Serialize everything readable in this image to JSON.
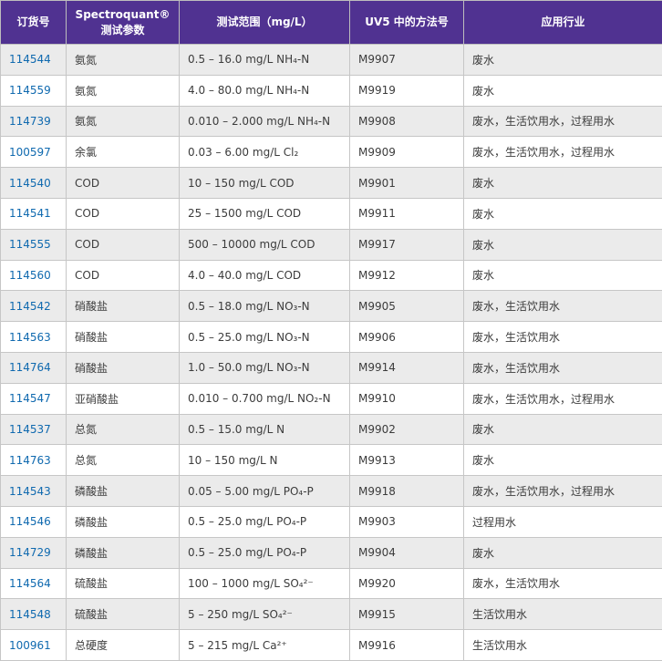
{
  "table": {
    "header_bg": "#503291",
    "header_text_color": "#ffffff",
    "order_link_color": "#0f69af",
    "zebra_row_color": "#ebebeb",
    "columns": [
      {
        "id": "order",
        "label": "订货号"
      },
      {
        "id": "param",
        "label": "Spectroquant®",
        "label2": "测试参数"
      },
      {
        "id": "range",
        "label": "测试范围（mg/L）"
      },
      {
        "id": "method",
        "label": "UV5 中的方法号"
      },
      {
        "id": "industry",
        "label": "应用行业"
      }
    ],
    "rows": [
      {
        "order": "114544",
        "param": "氨氮",
        "range": "0.5 – 16.0 mg/L NH₄-N",
        "method": "M9907",
        "industry": "废水"
      },
      {
        "order": "114559",
        "param": "氨氮",
        "range": "4.0 – 80.0 mg/L NH₄-N",
        "method": "M9919",
        "industry": "废水"
      },
      {
        "order": "114739",
        "param": "氨氮",
        "range": "0.010 – 2.000 mg/L NH₄-N",
        "method": "M9908",
        "industry": "废水，生活饮用水，过程用水"
      },
      {
        "order": "100597",
        "param": "余氯",
        "range": "0.03 – 6.00 mg/L Cl₂",
        "method": "M9909",
        "industry": "废水，生活饮用水，过程用水"
      },
      {
        "order": "114540",
        "param": "COD",
        "range": "10 – 150 mg/L COD",
        "method": "M9901",
        "industry": "废水"
      },
      {
        "order": "114541",
        "param": "COD",
        "range": "25 – 1500 mg/L COD",
        "method": "M9911",
        "industry": "废水"
      },
      {
        "order": "114555",
        "param": "COD",
        "range": "500 – 10000 mg/L COD",
        "method": "M9917",
        "industry": "废水"
      },
      {
        "order": "114560",
        "param": "COD",
        "range": "4.0 – 40.0 mg/L COD",
        "method": "M9912",
        "industry": "废水"
      },
      {
        "order": "114542",
        "param": "硝酸盐",
        "range": "0.5 – 18.0 mg/L NO₃-N",
        "method": "M9905",
        "industry": "废水，生活饮用水"
      },
      {
        "order": "114563",
        "param": "硝酸盐",
        "range": "0.5 – 25.0 mg/L NO₃-N",
        "method": "M9906",
        "industry": "废水，生活饮用水"
      },
      {
        "order": "114764",
        "param": "硝酸盐",
        "range": "1.0 – 50.0 mg/L NO₃-N",
        "method": "M9914",
        "industry": "废水，生活饮用水"
      },
      {
        "order": "114547",
        "param": "亚硝酸盐",
        "range": "0.010 – 0.700 mg/L NO₂-N",
        "method": "M9910",
        "industry": "废水，生活饮用水，过程用水"
      },
      {
        "order": "114537",
        "param": "总氮",
        "range": "0.5 – 15.0 mg/L N",
        "method": "M9902",
        "industry": "废水"
      },
      {
        "order": "114763",
        "param": "总氮",
        "range": "10 – 150 mg/L N",
        "method": "M9913",
        "industry": "废水"
      },
      {
        "order": "114543",
        "param": "磷酸盐",
        "range": "0.05 – 5.00 mg/L PO₄-P",
        "method": "M9918",
        "industry": "废水，生活饮用水，过程用水"
      },
      {
        "order": "114546",
        "param": "磷酸盐",
        "range": "0.5 – 25.0  mg/L PO₄-P",
        "method": "M9903",
        "industry": "过程用水"
      },
      {
        "order": "114729",
        "param": "磷酸盐",
        "range": "0.5 – 25.0 mg/L PO₄-P",
        "method": "M9904",
        "industry": "废水"
      },
      {
        "order": "114564",
        "param": "硫酸盐",
        "range": "100 – 1000 mg/L SO₄²⁻",
        "method": "M9920",
        "industry": "废水，生活饮用水"
      },
      {
        "order": "114548",
        "param": "硫酸盐",
        "range": "5 – 250 mg/L SO₄²⁻",
        "method": "M9915",
        "industry": "生活饮用水"
      },
      {
        "order": "100961",
        "param": "总硬度",
        "range": "5 – 215 mg/L Ca²⁺",
        "method": "M9916",
        "industry": "生活饮用水"
      }
    ]
  }
}
